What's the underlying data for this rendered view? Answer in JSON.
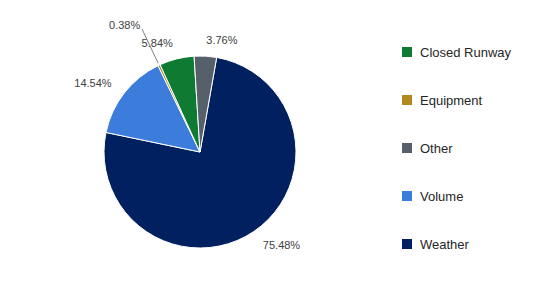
{
  "chart_data": {
    "type": "pie",
    "categories": [
      "Weather",
      "Volume",
      "Equipment",
      "Closed Runway",
      "Other"
    ],
    "values": [
      75.48,
      14.54,
      0.38,
      5.84,
      3.76
    ],
    "value_labels": [
      "75.48%",
      "14.54%",
      "0.38%",
      "5.84%",
      "3.76%"
    ],
    "colors": [
      "#002060",
      "#3c7ddb",
      "#b08a1e",
      "#0f7a32",
      "#56606b"
    ],
    "data_labels": true,
    "legend": "right"
  }
}
